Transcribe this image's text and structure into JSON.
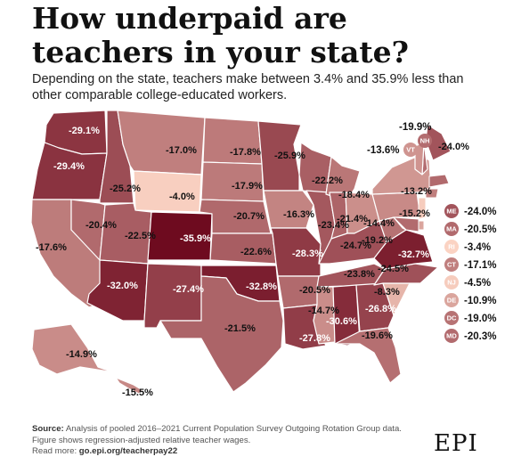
{
  "title": "How underpaid are teachers in your state?",
  "subtitle": "Depending on the state, teachers make between 3.4% and 35.9% less than other comparable college-educated workers.",
  "scale": {
    "min": -35.9,
    "max": -3.4,
    "light": "#fbd3c3",
    "dark": "#6e0b1f"
  },
  "states": [
    {
      "abbr": "WA",
      "value": "-29.1%"
    },
    {
      "abbr": "OR",
      "value": "-29.4%"
    },
    {
      "abbr": "CA",
      "value": "-17.6%"
    },
    {
      "abbr": "ID",
      "value": "-25.2%"
    },
    {
      "abbr": "NV",
      "value": "-20.4%"
    },
    {
      "abbr": "MT",
      "value": "-17.0%"
    },
    {
      "abbr": "WY",
      "value": "-4.0%"
    },
    {
      "abbr": "UT",
      "value": "-22.5%"
    },
    {
      "abbr": "AZ",
      "value": "-32.0%"
    },
    {
      "abbr": "CO",
      "value": "-35.9%"
    },
    {
      "abbr": "NM",
      "value": "-27.4%"
    },
    {
      "abbr": "ND",
      "value": "-17.8%"
    },
    {
      "abbr": "SD",
      "value": "-17.9%"
    },
    {
      "abbr": "NE",
      "value": "-20.7%"
    },
    {
      "abbr": "KS",
      "value": "-22.6%"
    },
    {
      "abbr": "OK",
      "value": "-32.8%"
    },
    {
      "abbr": "TX",
      "value": "-21.5%"
    },
    {
      "abbr": "MN",
      "value": "-25.9%"
    },
    {
      "abbr": "IA",
      "value": "-16.3%"
    },
    {
      "abbr": "MO",
      "value": "-28.3%"
    },
    {
      "abbr": "AR",
      "value": "-20.5%"
    },
    {
      "abbr": "LA",
      "value": "-27.8%"
    },
    {
      "abbr": "WI",
      "value": "-22.2%"
    },
    {
      "abbr": "IL",
      "value": "-23.4%"
    },
    {
      "abbr": "MI",
      "value": "-18.4%"
    },
    {
      "abbr": "IN",
      "value": "-21.4%"
    },
    {
      "abbr": "OH",
      "value": "-14.4%"
    },
    {
      "abbr": "KY",
      "value": "-24.7%"
    },
    {
      "abbr": "TN",
      "value": "-23.8%"
    },
    {
      "abbr": "MS",
      "value": "-14.7%"
    },
    {
      "abbr": "AL",
      "value": "-30.6%"
    },
    {
      "abbr": "GA",
      "value": "-26.8%"
    },
    {
      "abbr": "FL",
      "value": "-19.6%"
    },
    {
      "abbr": "SC",
      "value": "-8.3%"
    },
    {
      "abbr": "NC",
      "value": "-24.5%"
    },
    {
      "abbr": "VA",
      "value": "-32.7%"
    },
    {
      "abbr": "WV",
      "value": "-19.2%"
    },
    {
      "abbr": "PA",
      "value": "-15.2%"
    },
    {
      "abbr": "NY",
      "value": "-13.2%"
    },
    {
      "abbr": "ME",
      "value": "-24.0%"
    },
    {
      "abbr": "NH",
      "value": "-19.9%"
    },
    {
      "abbr": "VT",
      "value": "-13.6%"
    },
    {
      "abbr": "AK",
      "value": "-14.9%"
    },
    {
      "abbr": "HI",
      "value": "-15.5%"
    }
  ],
  "callouts": [
    {
      "abbr": "ME",
      "value": "-24.0%"
    },
    {
      "abbr": "MA",
      "value": "-20.5%"
    },
    {
      "abbr": "RI",
      "value": "-3.4%"
    },
    {
      "abbr": "CT",
      "value": "-17.1%"
    },
    {
      "abbr": "NJ",
      "value": "-4.5%"
    },
    {
      "abbr": "DE",
      "value": "-10.9%"
    },
    {
      "abbr": "DC",
      "value": "-19.0%"
    },
    {
      "abbr": "MD",
      "value": "-20.3%"
    }
  ],
  "top_callouts": [
    {
      "abbr": "NH",
      "value": "-19.9%"
    },
    {
      "abbr": "VT",
      "value": "-13.6%"
    }
  ],
  "footer": {
    "source_label": "Source:",
    "source_text": "Analysis of pooled 2016–2021 Current Population Survey Outgoing Rotation Group data. Figure shows regression-adjusted relative teacher wages.",
    "read_label": "Read more:",
    "read_link": "go.epi.org/teacherpay22"
  },
  "logo": "EPI"
}
